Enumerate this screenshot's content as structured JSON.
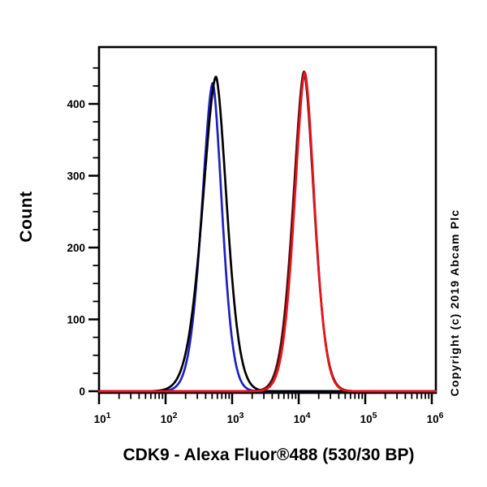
{
  "figure": {
    "background": "#ffffff"
  },
  "copyright": {
    "text": "Copyright (c) 2019 Abcam Plc"
  },
  "chart_data": {
    "type": "line",
    "subtype": "flow-cytometry-histogram",
    "title": "CDK9 - Alexa Fluor®488 (530/30 BP)",
    "xlabel": "CDK9 - Alexa Fluor®488 (530/30 BP)",
    "ylabel": "Count",
    "x_scale": "log10",
    "xlim_log10": [
      1,
      6.06
    ],
    "ylim": [
      0,
      478
    ],
    "y_major_ticks": [
      0,
      100,
      200,
      300,
      400
    ],
    "y_minor_step": 25,
    "y_minor_max": 450,
    "x_tick_label_base": "10",
    "x_major_ticks_log10": [
      1,
      2,
      3,
      4,
      5,
      6
    ],
    "grid": false,
    "legend": null,
    "frame_color": "#000000",
    "series": [
      {
        "name": "blue",
        "color": "#2020c0",
        "peak_x": 510,
        "peak_log10_x": 2.707,
        "peak_count": 429,
        "sigma_left_decades": 0.158,
        "sigma_right_decades": 0.138,
        "shape_exponent": 1.7
      },
      {
        "name": "black",
        "color": "#000000",
        "peak_x": 570,
        "peak_log10_x": 2.756,
        "peak_count": 438,
        "sigma_left_decades": 0.195,
        "sigma_right_decades": 0.16,
        "shape_exponent": 1.7
      },
      {
        "name": "red",
        "color": "#e8141b",
        "shadow_color": "#4f0e10",
        "shadow_offset_decades": -0.013,
        "peak_x": 12300,
        "peak_log10_x": 4.092,
        "peak_count": 444,
        "sigma_left_decades": 0.15,
        "sigma_right_decades": 0.142,
        "shape_exponent": 1.7
      }
    ]
  }
}
